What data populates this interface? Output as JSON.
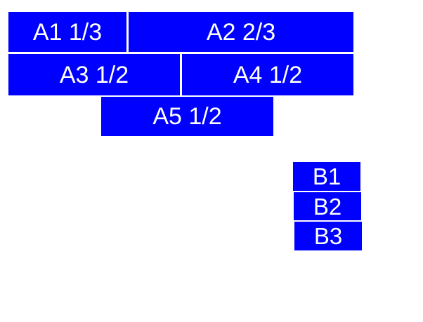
{
  "colors": {
    "window_background": "#ffffff",
    "box_fill": "#0000ff",
    "label_text": "#ffffff"
  },
  "boxes": {
    "a1": {
      "label": "A1 1/3"
    },
    "a2": {
      "label": "A2 2/3"
    },
    "a3": {
      "label": "A3 1/2"
    },
    "a4": {
      "label": "A4 1/2"
    },
    "a5": {
      "label": "A5 1/2"
    },
    "b1": {
      "label": "B1"
    },
    "b2": {
      "label": "B2"
    },
    "b3": {
      "label": "B3"
    }
  }
}
